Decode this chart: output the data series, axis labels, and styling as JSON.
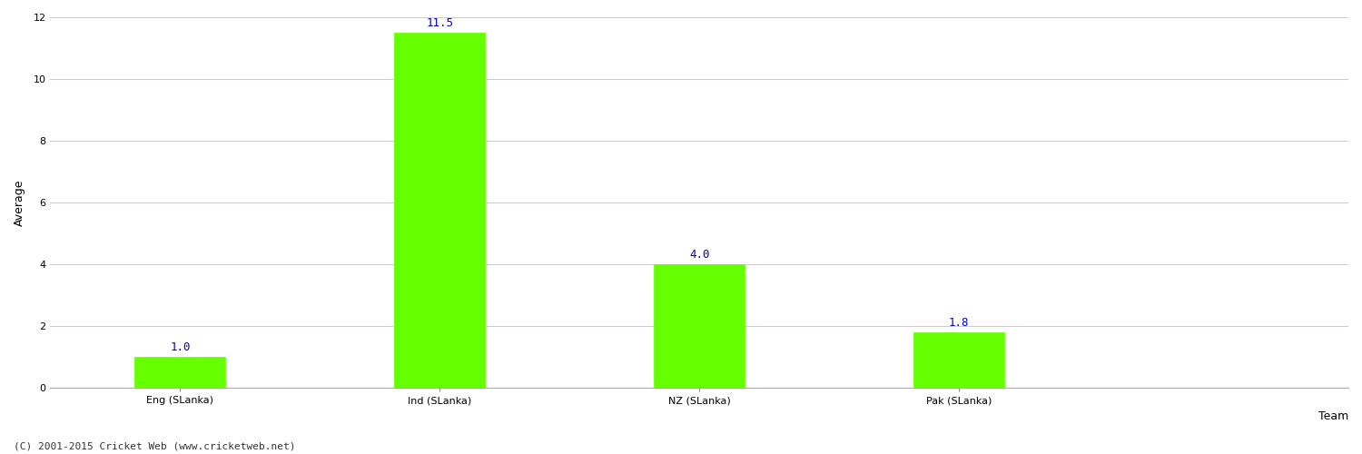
{
  "categories": [
    "Eng (SLanka)",
    "Ind (SLanka)",
    "NZ (SLanka)",
    "Pak (SLanka)"
  ],
  "values": [
    1.0,
    11.5,
    4.0,
    1.8
  ],
  "bar_color": "#66ff00",
  "bar_edge_color": "#66ff00",
  "xlabel": "Team",
  "ylabel": "Average",
  "ylim": [
    0,
    12
  ],
  "yticks": [
    0,
    2,
    4,
    6,
    8,
    10,
    12
  ],
  "label_color": "#0000cc",
  "label_fontsize": 9,
  "axis_fontsize": 9,
  "tick_fontsize": 8,
  "footer_text": "(C) 2001-2015 Cricket Web (www.cricketweb.net)",
  "footer_fontsize": 8,
  "background_color": "#ffffff",
  "grid_color": "#cccccc",
  "bar_width": 0.35,
  "xlim_left": -0.5,
  "xlim_right": 4.5
}
